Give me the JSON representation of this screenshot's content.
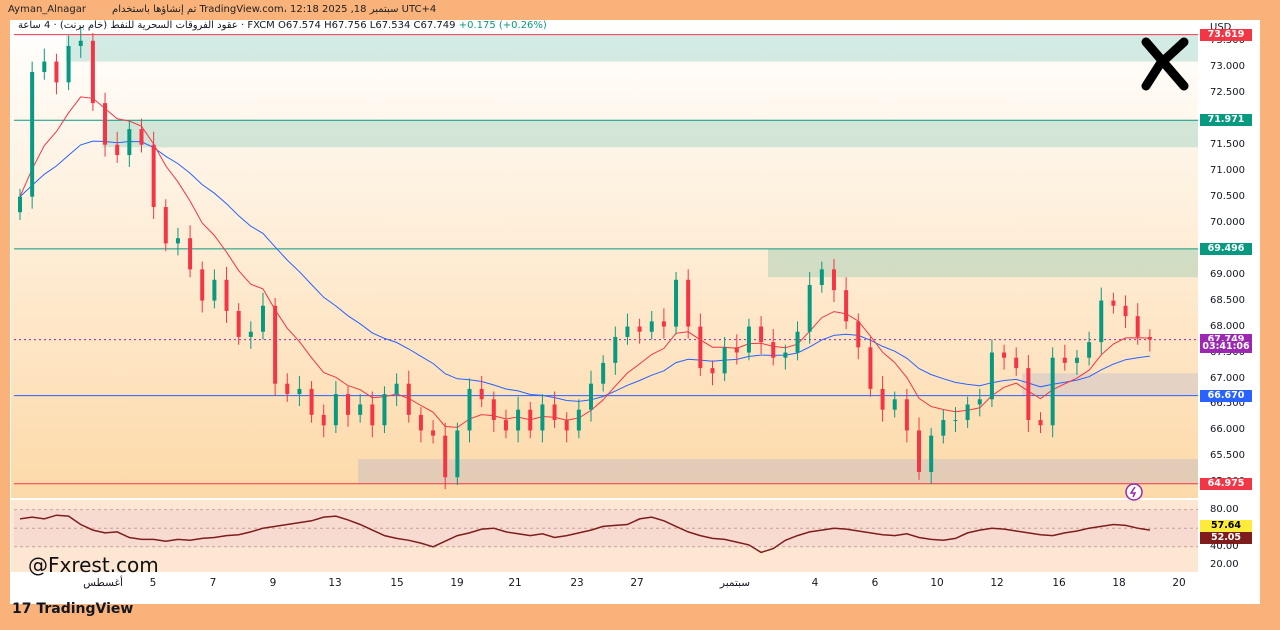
{
  "header": {
    "author": "Ayman_Alnagar",
    "published": "تم إنشاؤها باستخدام TradingView.com، 12:18 2025 ,18 سبتمبر UTC+4"
  },
  "legend": {
    "symbol": "عقود الفروقات السحرية للنفط (خام برنت) · 4 ساعة · FXCM",
    "open": "O67.574",
    "high": "H67.756",
    "low": "L67.534",
    "close": "C67.749",
    "change": "+0.175 (+0.26%)"
  },
  "currency": "USD",
  "watermark": "@Fxrest.com",
  "tv_logo": "TradingView",
  "colors": {
    "up": "#089981",
    "down": "#f23645",
    "ema_fast": "#f23645",
    "ema_slow": "#2962ff",
    "rsi": "#7f1d1d",
    "background_top": "#ffffff",
    "background_bottom": "#fdd9a8"
  },
  "chart_data": {
    "type": "candlestick",
    "timeframe": "4h",
    "y_axis": {
      "min": 64.7,
      "max": 73.9,
      "ticks": [
        "73.500",
        "73.000",
        "72.500",
        "72.000",
        "71.500",
        "71.000",
        "70.500",
        "70.000",
        "69.500",
        "69.000",
        "68.500",
        "68.000",
        "67.500",
        "67.000",
        "66.500",
        "66.000",
        "65.500",
        "65.000"
      ]
    },
    "x_labels": [
      "أغسطس",
      "5",
      "7",
      "9",
      "13",
      "15",
      "19",
      "21",
      "23",
      "27",
      "سبتمبر",
      "4",
      "6",
      "10",
      "12",
      "16",
      "18",
      "20"
    ],
    "price_labels": [
      {
        "text": "73.619",
        "value": 73.619,
        "color": "#f23645"
      },
      {
        "text": "71.971",
        "value": 71.971,
        "color": "#089981"
      },
      {
        "text": "69.496",
        "value": 69.496,
        "color": "#089981"
      },
      {
        "text": "67.749",
        "value": 67.749,
        "color": "#9c27b0"
      },
      {
        "text": "03:41:06",
        "value": 67.6,
        "color": "#9c27b0"
      },
      {
        "text": "66.670",
        "value": 66.67,
        "color": "#2962ff"
      },
      {
        "text": "64.975",
        "value": 64.975,
        "color": "#f23645"
      }
    ],
    "zones": [
      {
        "from": 73.1,
        "to": 73.62,
        "color": "green"
      },
      {
        "from": 71.45,
        "to": 71.97,
        "color": "green"
      },
      {
        "from": 68.95,
        "to": 69.5,
        "color": "green"
      },
      {
        "from": 66.67,
        "to": 67.1,
        "color": "blue"
      },
      {
        "from": 64.97,
        "to": 65.45,
        "color": "blue"
      }
    ],
    "close_series": [
      70.5,
      72.9,
      73.1,
      72.7,
      73.4,
      73.5,
      72.3,
      71.5,
      71.3,
      71.8,
      71.5,
      70.3,
      69.6,
      69.7,
      69.1,
      68.5,
      68.9,
      68.3,
      67.8,
      67.9,
      68.4,
      66.9,
      66.7,
      66.8,
      66.3,
      66.1,
      66.7,
      66.3,
      66.5,
      66.1,
      66.7,
      66.9,
      66.3,
      66.0,
      65.9,
      65.1,
      66.0,
      66.8,
      66.6,
      66.2,
      66.0,
      66.4,
      66.0,
      66.5,
      66.2,
      66.0,
      66.4,
      66.9,
      67.3,
      67.8,
      68.0,
      67.9,
      68.1,
      68.0,
      68.9,
      68.0,
      67.2,
      67.1,
      67.6,
      67.5,
      68.0,
      67.7,
      67.4,
      67.5,
      67.9,
      68.8,
      69.1,
      68.7,
      68.1,
      67.6,
      66.8,
      66.4,
      66.6,
      66.0,
      65.2,
      65.9,
      66.2,
      66.2,
      66.5,
      66.6,
      67.5,
      67.4,
      67.2,
      66.2,
      66.1,
      67.4,
      67.3,
      67.4,
      67.7,
      68.5,
      68.4,
      68.2,
      67.8,
      67.749
    ],
    "rsi": {
      "ticks": [
        "80.00",
        "60.00",
        "40.00",
        "20.00"
      ],
      "value_labels": [
        {
          "text": "57.64",
          "color": "#ffeb3b"
        },
        {
          "text": "52.05",
          "color": "#7f1d1d"
        }
      ],
      "values": [
        70,
        72,
        70,
        74,
        73,
        64,
        58,
        55,
        56,
        50,
        48,
        48,
        46,
        48,
        47,
        49,
        50,
        52,
        53,
        56,
        60,
        62,
        64,
        66,
        68,
        72,
        73,
        69,
        64,
        58,
        52,
        49,
        47,
        44,
        40,
        46,
        52,
        55,
        59,
        60,
        56,
        54,
        52,
        54,
        50,
        52,
        55,
        58,
        62,
        63,
        64,
        70,
        72,
        68,
        62,
        56,
        52,
        49,
        48,
        45,
        42,
        34,
        38,
        47,
        52,
        56,
        58,
        60,
        59,
        57,
        55,
        53,
        52,
        54,
        50,
        48,
        47,
        49,
        55,
        58,
        60,
        59,
        57,
        55,
        53,
        52,
        55,
        57,
        60,
        62,
        64,
        63,
        60,
        58,
        57.64,
        52.05
      ]
    }
  }
}
